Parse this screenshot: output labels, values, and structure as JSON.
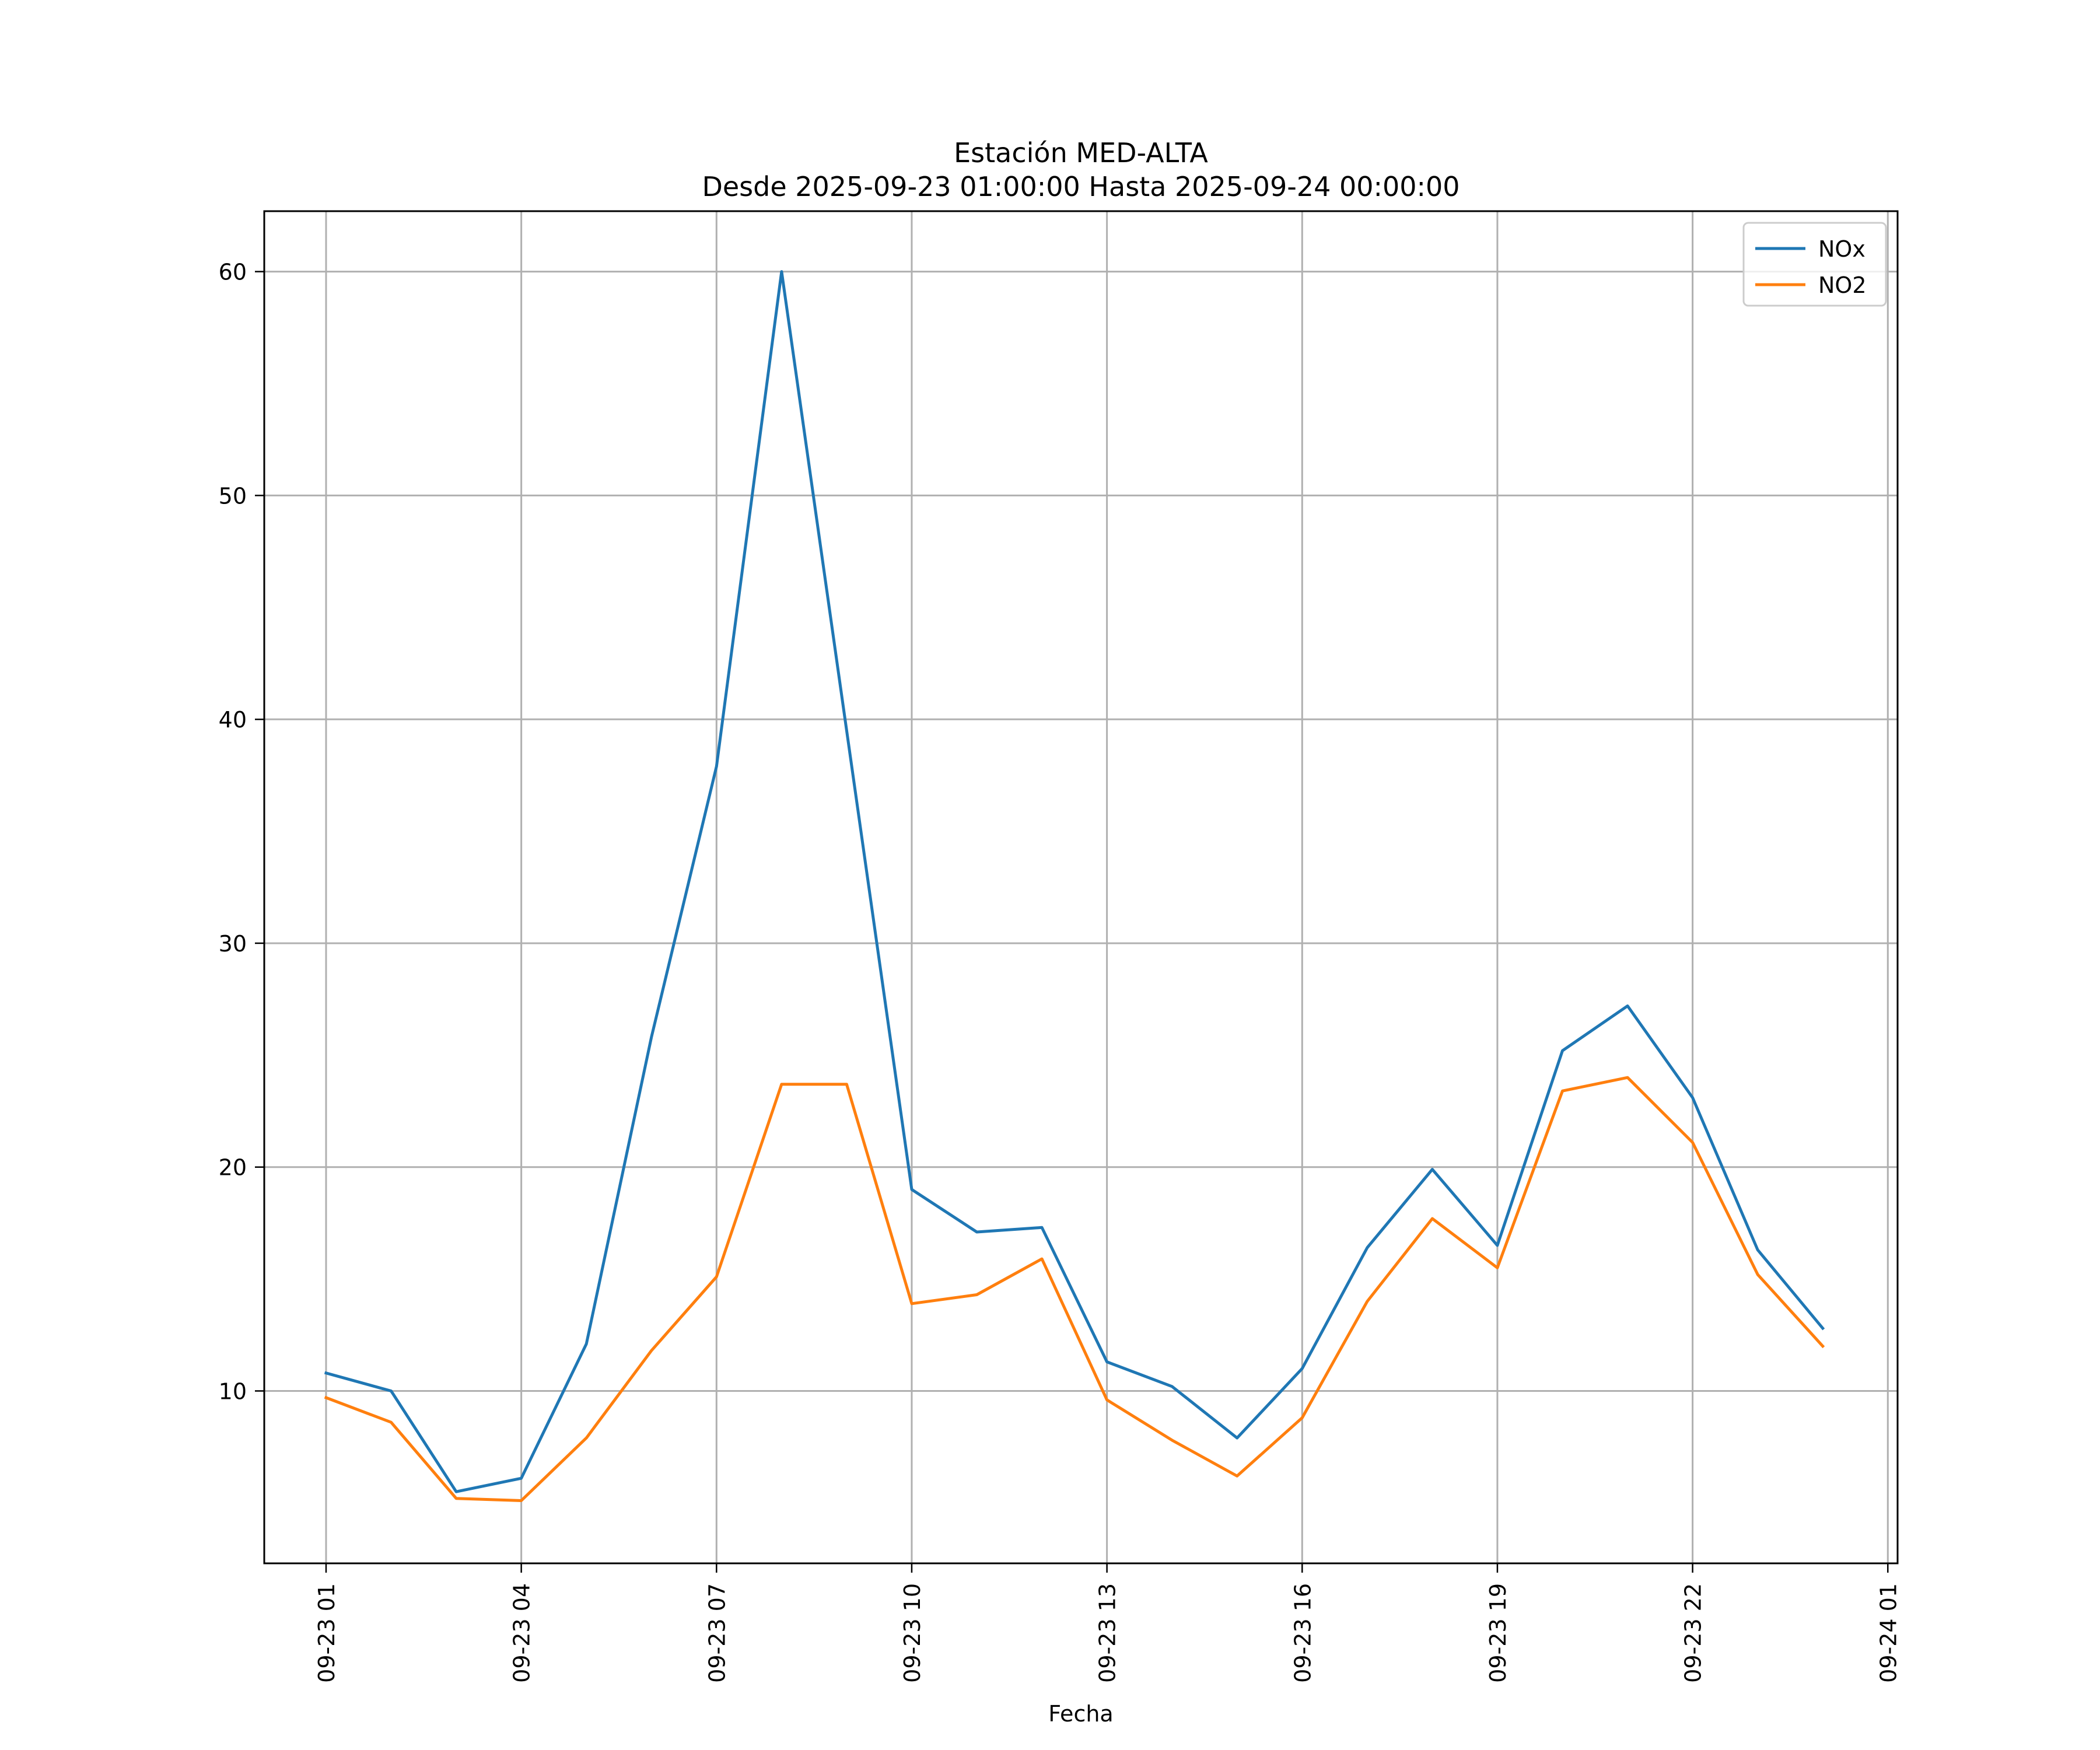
{
  "chart_data": {
    "type": "line",
    "title": "Estación MED-ALTA",
    "subtitle": "Desde 2025-09-23 01:00:00 Hasta 2025-09-24 00:00:00",
    "xlabel": "Fecha",
    "ylabel": "",
    "x_unit": "hour",
    "x": [
      1,
      2,
      3,
      4,
      5,
      6,
      7,
      8,
      9,
      10,
      11,
      12,
      13,
      14,
      15,
      16,
      17,
      18,
      19,
      20,
      21,
      22,
      23,
      24
    ],
    "xlim": [
      0.05,
      25.15
    ],
    "ylim": [
      2.3,
      62.7
    ],
    "x_ticks": [
      {
        "value": 1,
        "label": "09-23 01"
      },
      {
        "value": 4,
        "label": "09-23 04"
      },
      {
        "value": 7,
        "label": "09-23 07"
      },
      {
        "value": 10,
        "label": "09-23 10"
      },
      {
        "value": 13,
        "label": "09-23 13"
      },
      {
        "value": 16,
        "label": "09-23 16"
      },
      {
        "value": 19,
        "label": "09-23 19"
      },
      {
        "value": 22,
        "label": "09-23 22"
      },
      {
        "value": 25,
        "label": "09-24 01"
      }
    ],
    "y_ticks": [
      {
        "value": 10,
        "label": "10"
      },
      {
        "value": 20,
        "label": "20"
      },
      {
        "value": 30,
        "label": "30"
      },
      {
        "value": 40,
        "label": "40"
      },
      {
        "value": 50,
        "label": "50"
      },
      {
        "value": 60,
        "label": "60"
      }
    ],
    "grid": true,
    "legend_position": "top-right",
    "series": [
      {
        "name": "NOx",
        "color": "#1f77b4",
        "values": [
          10.8,
          10.0,
          5.5,
          6.1,
          12.1,
          25.8,
          37.9,
          60.0,
          39.5,
          19.0,
          17.1,
          17.3,
          11.3,
          10.2,
          7.9,
          11.0,
          16.4,
          19.9,
          16.5,
          25.2,
          27.2,
          23.1,
          16.3,
          12.8
        ]
      },
      {
        "name": "NO2",
        "color": "#ff7f0e",
        "values": [
          9.7,
          8.6,
          5.2,
          5.1,
          7.9,
          11.8,
          15.1,
          23.7,
          23.7,
          13.9,
          14.3,
          15.9,
          9.6,
          7.8,
          6.2,
          8.8,
          14.0,
          17.7,
          15.5,
          23.4,
          24.0,
          21.1,
          15.2,
          12.0
        ]
      }
    ]
  }
}
